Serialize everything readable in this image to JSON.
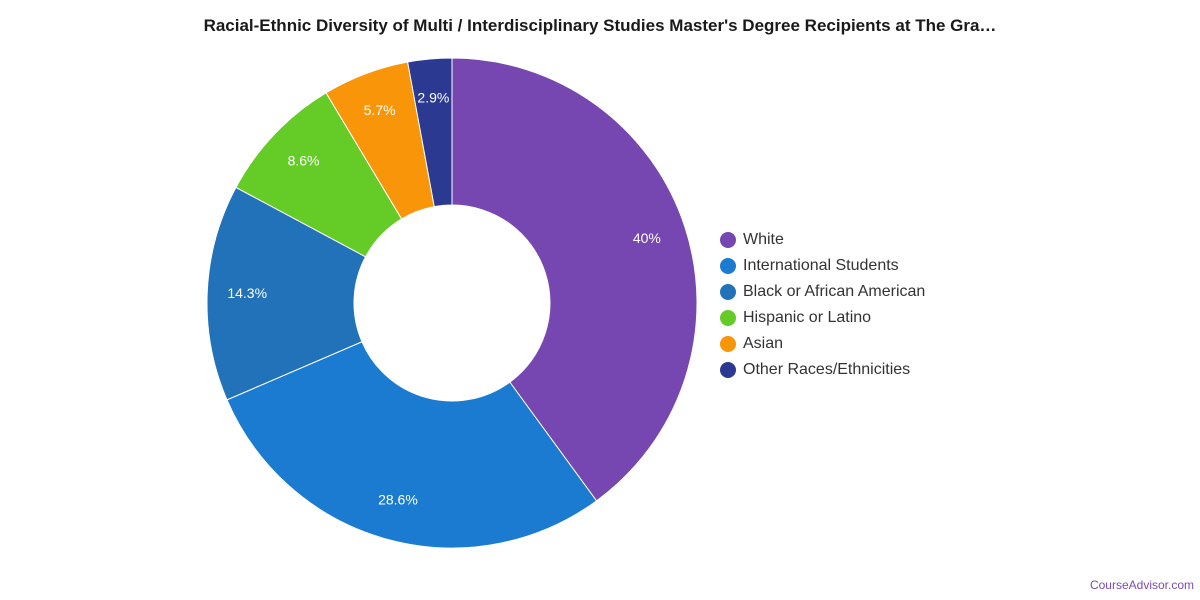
{
  "chart_data": {
    "type": "pie",
    "title": "Racial-Ethnic Diversity of Multi / Interdisciplinary Studies Master's Degree Recipients at The Gra…",
    "donut": true,
    "slices": [
      {
        "name": "White",
        "value": 40,
        "label": "40%",
        "color": "#7647b0"
      },
      {
        "name": "International Students",
        "value": 28.6,
        "label": "28.6%",
        "color": "#1a7bd0"
      },
      {
        "name": "Black or African American",
        "value": 14.3,
        "label": "14.3%",
        "color": "#2272b9"
      },
      {
        "name": "Hispanic or Latino",
        "value": 8.6,
        "label": "8.6%",
        "color": "#65cb27"
      },
      {
        "name": "Asian",
        "value": 5.7,
        "label": "5.7%",
        "color": "#f89508"
      },
      {
        "name": "Other Races/Ethnicities",
        "value": 2.9,
        "label": "2.9%",
        "color": "#2b3990"
      }
    ],
    "legend_placement": "right"
  },
  "credit": "CourseAdvisor.com"
}
